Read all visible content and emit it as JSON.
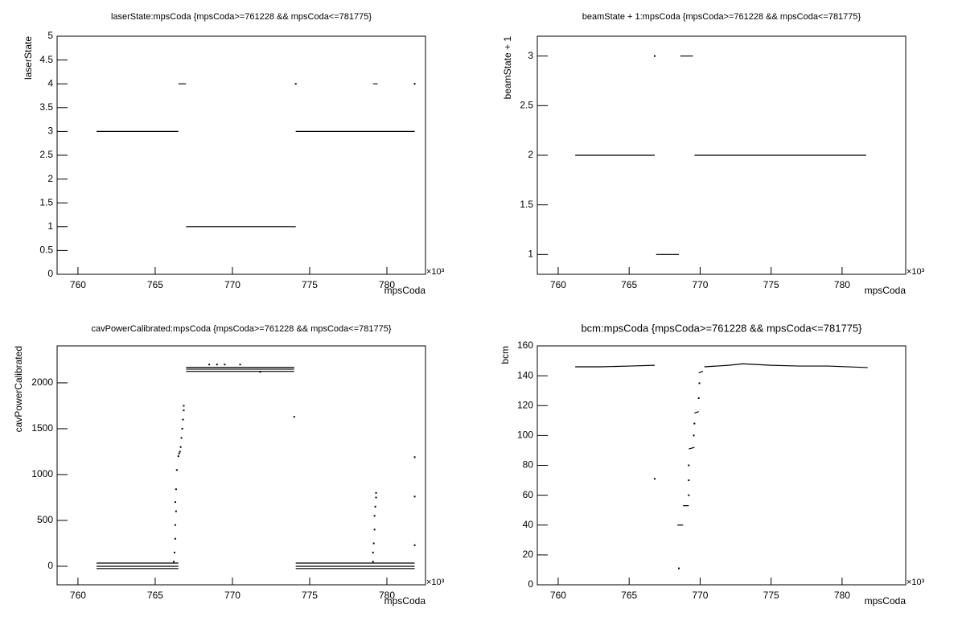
{
  "chart_data": [
    {
      "type": "scatter",
      "title": "laserState:mpsCoda {mpsCoda>=761228 && mpsCoda<=781775}",
      "xlabel": "mpsCoda",
      "ylabel": "laserState",
      "x_multiplier": "×10³",
      "xlim": [
        758.65,
        782.5
      ],
      "ylim": [
        0,
        5
      ],
      "xticks": [
        760,
        765,
        770,
        775,
        780
      ],
      "yticks": [
        0,
        0.5,
        1,
        1.5,
        2,
        2.5,
        3,
        3.5,
        4,
        4.5,
        5
      ],
      "series": [
        {
          "style": "line",
          "color": "#000000",
          "x": [
            761.2,
            766.5,
            null,
            766.5,
            767.0,
            null,
            767.0,
            774.1,
            null,
            774.1,
            781.8,
            null,
            779.1,
            779.4
          ],
          "y": [
            3,
            3,
            null,
            4,
            4,
            null,
            1,
            1,
            null,
            3,
            3,
            null,
            4,
            4
          ]
        },
        {
          "style": "dot",
          "color": "#000000",
          "x": [
            774.1,
            781.8
          ],
          "y": [
            4,
            4
          ]
        }
      ]
    },
    {
      "type": "scatter",
      "title": "beamState + 1:mpsCoda {mpsCoda>=761228 && mpsCoda<=781775}",
      "xlabel": "mpsCoda",
      "ylabel": "beamState + 1",
      "x_multiplier": "×10³",
      "xlim": [
        758.53,
        784.48
      ],
      "ylim": [
        0.8,
        3.2
      ],
      "xticks": [
        760,
        765,
        770,
        775,
        780
      ],
      "yticks": [
        1,
        1.5,
        2,
        2.5,
        3
      ],
      "series": [
        {
          "style": "line",
          "color": "#000000",
          "x": [
            761.2,
            766.8,
            null,
            766.9,
            768.5,
            null,
            768.6,
            769.5,
            null,
            769.6,
            781.7
          ],
          "y": [
            2,
            2,
            null,
            1,
            1,
            null,
            3,
            3,
            null,
            2,
            2
          ]
        },
        {
          "style": "dot",
          "color": "#000000",
          "x": [
            766.8
          ],
          "y": [
            3
          ]
        }
      ]
    },
    {
      "type": "scatter",
      "title": "cavPowerCalibrated:mpsCoda {mpsCoda>=761228 && mpsCoda<=781775}",
      "xlabel": "mpsCoda",
      "ylabel": "cavPowerCalibrated",
      "x_multiplier": "×10³",
      "xlim": [
        758.65,
        782.5
      ],
      "ylim": [
        -202,
        2403
      ],
      "xticks": [
        760,
        765,
        770,
        775,
        780
      ],
      "yticks": [
        0,
        500,
        1000,
        1500,
        2000
      ],
      "series": [
        {
          "style": "line",
          "color": "#000000",
          "x": [
            761.2,
            766.5,
            null,
            761.2,
            766.5,
            null,
            761.2,
            766.5,
            null,
            774.1,
            781.8,
            null,
            774.1,
            781.8,
            null,
            774.1,
            781.8,
            null,
            767.0,
            774.0,
            null,
            767.0,
            774.0,
            null,
            767.0,
            774.0
          ],
          "y": [
            35,
            35,
            null,
            0,
            0,
            null,
            -25,
            -25,
            null,
            35,
            35,
            null,
            0,
            0,
            null,
            -25,
            -25,
            null,
            2170,
            2170,
            null,
            2150,
            2150,
            null,
            2125,
            2125
          ]
        },
        {
          "style": "dot",
          "color": "#000000",
          "x": [
            766.2,
            766.25,
            766.3,
            766.3,
            766.35,
            766.3,
            766.35,
            766.4,
            766.5,
            766.55,
            766.6,
            766.65,
            766.7,
            766.75,
            766.8,
            766.85,
            766.85,
            779.1,
            779.1,
            779.15,
            779.2,
            779.2,
            779.25,
            779.3,
            779.3,
            774.0,
            781.8,
            781.8,
            781.8,
            768.5,
            769.0,
            769.5,
            770.5,
            771.8
          ],
          "y": [
            50,
            150,
            300,
            450,
            600,
            700,
            840,
            1050,
            1200,
            1230,
            1250,
            1300,
            1400,
            1500,
            1600,
            1700,
            1750,
            50,
            150,
            250,
            400,
            550,
            650,
            750,
            800,
            1630,
            1190,
            760,
            230,
            2200,
            2200,
            2200,
            2200,
            2120
          ]
        }
      ]
    },
    {
      "type": "scatter",
      "title": "bcm:mpsCoda {mpsCoda>=761228 && mpsCoda<=781775}",
      "xlabel": "mpsCoda",
      "ylabel": "bcm",
      "x_multiplier": "×10³",
      "xlim": [
        758.53,
        784.48
      ],
      "ylim": [
        0,
        160
      ],
      "xticks": [
        760,
        765,
        770,
        775,
        780
      ],
      "yticks": [
        0,
        20,
        40,
        60,
        80,
        100,
        120,
        140,
        160
      ],
      "series": [
        {
          "style": "line",
          "color": "#000000",
          "x": [
            761.2,
            763,
            765,
            766.8,
            null,
            768.4,
            768.8,
            null,
            768.8,
            769.2,
            null,
            769.2,
            769.6,
            null,
            769.6,
            769.9,
            null,
            769.9,
            770.2,
            null,
            770.3,
            772,
            773,
            775,
            777,
            779,
            781.8
          ],
          "y": [
            146,
            146,
            146.5,
            147,
            null,
            40,
            40,
            null,
            53,
            53,
            null,
            91,
            92,
            null,
            115,
            116,
            null,
            142,
            143,
            null,
            146,
            147,
            148,
            147,
            146.5,
            146.5,
            145.5
          ]
        },
        {
          "style": "dot",
          "color": "#000000",
          "x": [
            766.8,
            768.5,
            769.2,
            769.2,
            769.2,
            769.55,
            769.6,
            769.9,
            769.95
          ],
          "y": [
            71,
            11,
            60,
            70,
            80,
            100,
            108,
            125,
            135
          ]
        }
      ]
    }
  ]
}
